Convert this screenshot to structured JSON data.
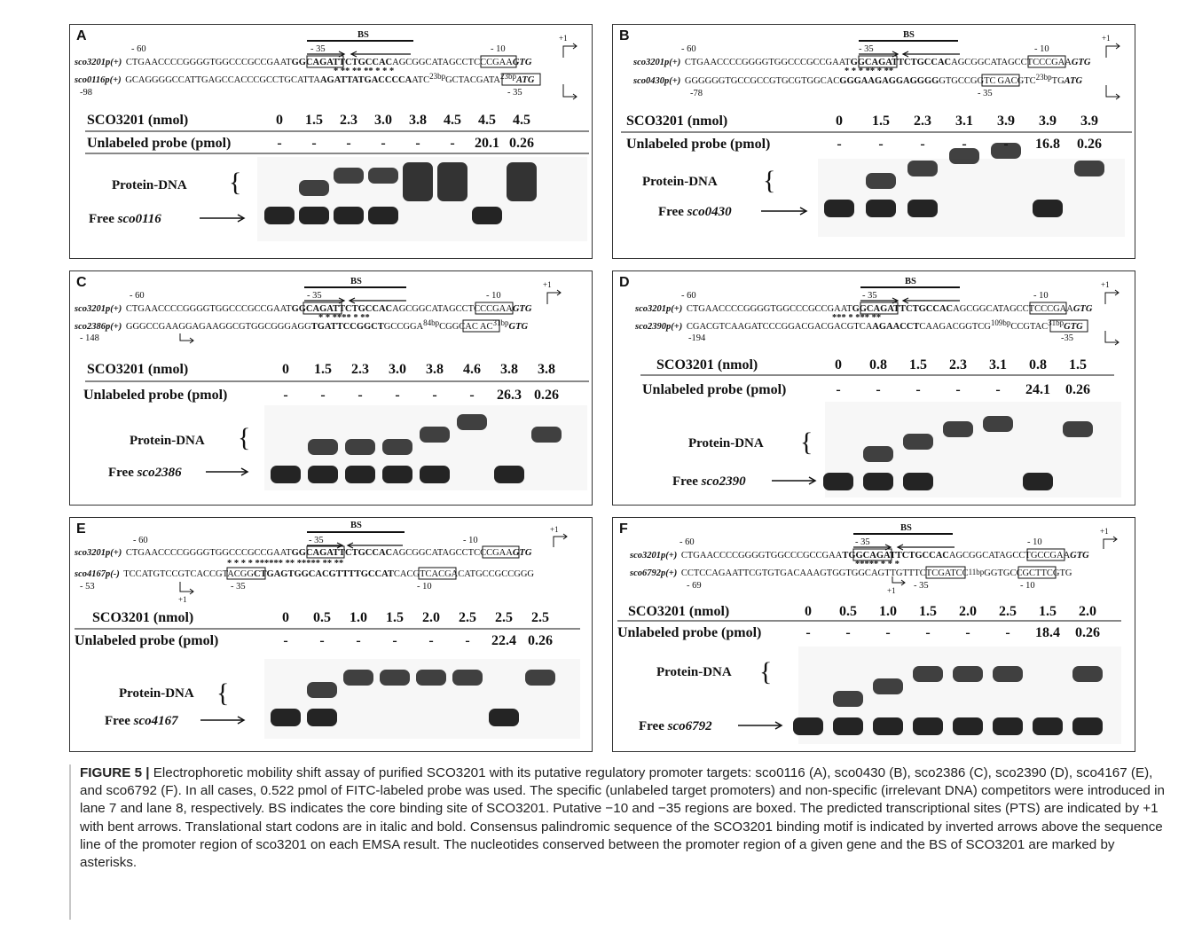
{
  "panels": [
    {
      "letter": "A",
      "bs_label": "BS",
      "pos_m60": "- 60",
      "pos_m35": "- 35",
      "pos_m10": "- 10",
      "plus1": "+1",
      "line1_name": "sco3201p(+)",
      "line1_a": "CTGAACCCCGGGGTGGCCCGCCGAAT",
      "line1_b": "GGCAGA",
      "line1_c": "TTCTGCCAC",
      "line1_d": "AGCGGCAT",
      "line1_e": "AGCCTC",
      "line1_f": "CCGAA",
      "line1_g": "GTG",
      "asterisks": "* ** **  **  *  *   *",
      "line2_name": "sco0116p(+)",
      "line2_a": "GCAGGGGCCATTGAGCCACCCGCCTGCATTA",
      "line2_b": "AGATTATGACCCCA",
      "line2_c": "ATC",
      "line2_gap1": "23bp",
      "line2_d": "GCT",
      "line2_e": "ACGATA",
      "line2_gap2": "23bp",
      "line2_f": "ATG",
      "line2_pos_left": "-98",
      "line2_pos_m35": "- 35",
      "nmol_label": "SCO3201 (nmol)",
      "nmol": [
        "0",
        "1.5",
        "2.3",
        "3.0",
        "3.8",
        "4.5",
        "4.5",
        "4.5"
      ],
      "unl_label": "Unlabeled probe (pmol)",
      "unl": [
        "-",
        "-",
        "-",
        "-",
        "-",
        "-",
        "20.1",
        "0.26"
      ],
      "complex_label": "Protein-DNA",
      "free_label": "Free",
      "free_gene": "sco0116"
    },
    {
      "letter": "B",
      "bs_label": "BS",
      "pos_m60": "- 60",
      "pos_m35": "- 35",
      "pos_m10": "- 10",
      "plus1": "+1",
      "line1_name": "sco3201p(+)",
      "line1_a": "CTGAACCCCGGGGTGGCCCGCCGAAT",
      "line1_b": "GGCAGA",
      "line1_c": "TTCTGCCAC",
      "line1_d": "AGCGGCAT",
      "line1_e": "AGCCTC",
      "line1_f": "CCGAA",
      "line1_g": "GTG",
      "asterisks": "*   * *  **         *           **",
      "line2_name": "sco0430p(+)",
      "line2_a": "GGGGGGTGCCGCCGTGCGTGGCAC",
      "line2_b": "GGGAAGAGGAGGGG",
      "line2_c": "GTG",
      "line2_gap1": "",
      "line2_d": "",
      "line2_e": "CCGGTC",
      "line2_gap2": "23bp",
      "line2_f": "ATG",
      "line2_pos_left": "-78",
      "line2_pos_m35": "- 35",
      "nmol_label": "SCO3201 (nmol)",
      "nmol": [
        "0",
        "1.5",
        "2.3",
        "3.1",
        "3.9",
        "3.9",
        "3.9"
      ],
      "unl_label": "Unlabeled probe (pmol)",
      "unl": [
        "-",
        "-",
        "-",
        "-",
        "-",
        "16.8",
        "0.26"
      ],
      "complex_label": "Protein-DNA",
      "free_label": "Free",
      "free_gene": "sco0430"
    },
    {
      "letter": "C",
      "bs_label": "BS",
      "pos_m60": "- 60",
      "pos_m35": "- 35",
      "pos_m10": "- 10",
      "plus1": "+1",
      "line1_name": "sco3201p(+)",
      "line1_a": "CTGAACCCCGGGGTGGCCCGCCGAAT",
      "line1_b": "GGCAGA",
      "line1_c": "TTCTGCCAC",
      "line1_d": "AGCGGCAT",
      "line1_e": "AGCCTC",
      "line1_f": "CCGAA",
      "line1_g": "GTG",
      "asterisks": "*  * ****  * **",
      "line2_name": "sco2386p(+)",
      "line2_a": "GGGCCGAAGGAGAAGGCGTGGCGGGAGG",
      "line2_b": "TGATTCCGGCT",
      "line2_c": "GCCGGA",
      "line2_gap1": "84bp",
      "line2_d": "",
      "line2_e": "CGGCAC",
      "line2_gap2": "31bp",
      "line2_f": "GTG",
      "line2_pos_left": "- 148",
      "line2_pos_m35": "",
      "nmol_label": "SCO3201 (nmol)",
      "nmol": [
        "0",
        "1.5",
        "2.3",
        "3.0",
        "3.8",
        "4.6",
        "3.8",
        "3.8"
      ],
      "unl_label": "Unlabeled probe (pmol)",
      "unl": [
        "-",
        "-",
        "-",
        "-",
        "-",
        "-",
        "26.3",
        "0.26"
      ],
      "complex_label": "Protein-DNA",
      "free_label": "Free",
      "free_gene": "sco2386"
    },
    {
      "letter": "D",
      "bs_label": "BS",
      "pos_m60": "- 60",
      "pos_m35": "- 35",
      "pos_m10": "- 10",
      "plus1": "+1",
      "line1_name": "sco3201p(+)",
      "line1_a": "CTGAACCCCGGGGTGGCCCGCCGAAT",
      "line1_b": "GGCAGA",
      "line1_c": "TTCTGCCAC",
      "line1_d": "AGCGGCAT",
      "line1_e": "AGCCTC",
      "line1_f": "CCGAA",
      "line1_g": "GTG",
      "asterisks": "***        * ***        **",
      "line2_name": "sco2390p(+)",
      "line2_a": "CGACGTCAAGATCCCGGACGACGACGTCA",
      "line2_b": "AGAACCT",
      "line2_c": "CAAGACGGTCG",
      "line2_gap1": "109bp",
      "line2_d": "",
      "line2_e": "CCGTAC",
      "line2_gap2": "31bp",
      "line2_f": "GTG",
      "line2_pos_left": "-194",
      "line2_pos_m35": "-35",
      "nmol_label": "SCO3201 (nmol)",
      "nmol": [
        "0",
        "0.8",
        "1.5",
        "2.3",
        "3.1",
        "0.8",
        "1.5"
      ],
      "unl_label": "Unlabeled probe (pmol)",
      "unl": [
        "-",
        "-",
        "-",
        "-",
        "-",
        "24.1",
        "0.26"
      ],
      "complex_label": "Protein-DNA",
      "free_label": "Free",
      "free_gene": "sco2390"
    },
    {
      "letter": "E",
      "bs_label": "BS",
      "pos_m60": "- 60",
      "pos_m35": "- 35",
      "pos_m10": "- 10",
      "plus1": "+1",
      "line1_name": "sco3201p(+)",
      "line1_a": "CTGAACCCCGGGGTGGCCCGCCGAAT",
      "line1_b": "GGCAGA",
      "line1_c": "TTCTGCCAC",
      "line1_d": "AGCGGCAT",
      "line1_e": "AGCCTC",
      "line1_f": "CCGAA",
      "line1_g": "GTG",
      "asterisks": "*   *   *  * ******   ** *****      ** **",
      "line2_name": "sco4167p(-)",
      "line2_a": "TCCATGTCCGTCACC",
      "line2_b": "GTACGG",
      "line2_c": "CTGAGTGGCACGTTTTGCCAT",
      "line2_gap1": "",
      "line2_d": "",
      "line2_e": "CACGTC",
      "line2_gap2": "",
      "line2_f": "ACGACATGCCGCCGGG",
      "line2_pos_left": "- 53",
      "line2_pos_m35": "- 35",
      "nmol_label": "SCO3201 (nmol)",
      "nmol": [
        "0",
        "0.5",
        "1.0",
        "1.5",
        "2.0",
        "2.5",
        "2.5",
        "2.5"
      ],
      "unl_label": "Unlabeled probe (pmol)",
      "unl": [
        "-",
        "-",
        "-",
        "-",
        "-",
        "-",
        "22.4",
        "0.26"
      ],
      "complex_label": "Protein-DNA",
      "free_label": "Free",
      "free_gene": "sco4167"
    },
    {
      "letter": "F",
      "bs_label": "BS",
      "pos_m60": "- 60",
      "pos_m35": "- 35",
      "pos_m10": "- 10",
      "plus1": "+1",
      "line1_name": "sco3201p(+)",
      "line1_a": "CTGAACCCCGGGGTGGCCCGCCGAA",
      "line1_b": "TGGCAG",
      "line1_c": "ATTCTGCCAC",
      "line1_d": "AGCGGCA",
      "line1_e": "TAGCCT",
      "line1_f": "GCCGAA",
      "line1_g": "GTG",
      "asterisks": "*****  *   *  *",
      "line2_name": "sco6792p(+)",
      "line2_a": "CCTCCAGAATTCGTGTGACAAAGTGGTGGCAGTTGTT",
      "line2_b": "",
      "line2_c": "TCTCGA",
      "line2_gap1": "11bp",
      "line2_d": "TCC",
      "line2_e": "GGTGCC",
      "line2_gap2": "",
      "line2_f": "GCTTCGTG",
      "line2_pos_left": "- 69",
      "line2_pos_m35": "- 35",
      "nmol_label": "SCO3201 (nmol)",
      "nmol": [
        "0",
        "0.5",
        "1.0",
        "1.5",
        "2.0",
        "2.5",
        "1.5",
        "2.0"
      ],
      "unl_label": "Unlabeled probe (pmol)",
      "unl": [
        "-",
        "-",
        "-",
        "-",
        "-",
        "-",
        "18.4",
        "0.26"
      ],
      "complex_label": "Protein-DNA",
      "free_label": "Free",
      "free_gene": "sco6792"
    }
  ],
  "caption": {
    "figno": "FIGURE 5 |",
    "text": "Electrophoretic mobility shift assay of purified SCO3201 with its putative regulatory promoter targets: sco0116 (A), sco0430 (B), sco2386 (C), sco2390 (D), sco4167 (E), and sco6792 (F). In all cases, 0.522 pmol of FITC-labeled probe was used. The specific (unlabeled target promoters) and non-specific (irrelevant DNA) competitors were introduced in lane 7 and lane 8, respectively. BS indicates the core binding site of SCO3201. Putative −10 and −35 regions are boxed. The predicted transcriptional sites (PTS) are indicated by +1 with bent arrows. Translational start codons are in italic and bold. Consensus palindromic sequence of the SCO3201 binding motif is indicated by inverted arrows above the sequence line of the promoter region of sco3201 on each EMSA result. The nucleotides conserved between the promoter region of a given gene and the BS of SCO3201 are marked by asterisks."
  }
}
